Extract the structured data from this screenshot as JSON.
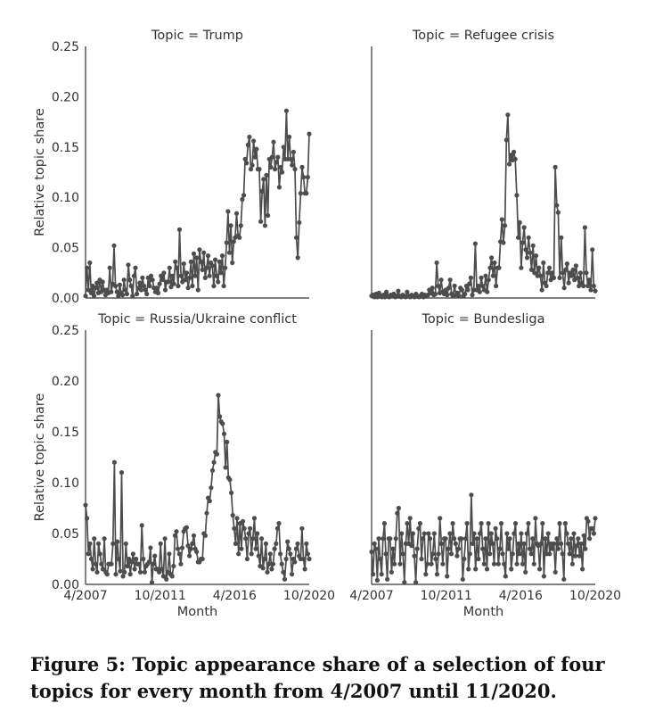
{
  "caption": "Figure 5: Topic appearance share of a selection of four topics for every month from 4/2007 until 11/2020.",
  "y_axis_label": "Relative topic share",
  "x_axis_label": "Month",
  "chart_data": [
    {
      "type": "line",
      "title": "Topic = Trump",
      "ylabel": "Relative topic share",
      "xlabel": "",
      "ylim": [
        0,
        0.25
      ],
      "yticks": [
        "0.00",
        "0.05",
        "0.10",
        "0.15",
        "0.20",
        "0.25"
      ],
      "xticks": [],
      "x_start": "4/2007",
      "x_end": "11/2020",
      "series": [
        {
          "color": "#4d4d4d",
          "values": [
            0.002,
            0.03,
            0.008,
            0.035,
            0.005,
            0.012,
            0.002,
            0.01,
            0.015,
            0.005,
            0.018,
            0.006,
            0.016,
            0.008,
            0.003,
            0.008,
            0.005,
            0.03,
            0.006,
            0.014,
            0.052,
            0.012,
            0.006,
            0.002,
            0.013,
            0.005,
            0.003,
            0.018,
            0.008,
            0.004,
            0.033,
            0.018,
            0.012,
            0.002,
            0.022,
            0.03,
            0.004,
            0.01,
            0.015,
            0.008,
            0.02,
            0.012,
            0.008,
            0.004,
            0.02,
            0.012,
            0.022,
            0.018,
            0.01,
            0.006,
            0.01,
            0.005,
            0.014,
            0.022,
            0.018,
            0.025,
            0.008,
            0.016,
            0.016,
            0.03,
            0.011,
            0.022,
            0.014,
            0.036,
            0.03,
            0.012,
            0.068,
            0.022,
            0.016,
            0.034,
            0.018,
            0.025,
            0.01,
            0.02,
            0.036,
            0.012,
            0.044,
            0.022,
            0.04,
            0.008,
            0.048,
            0.036,
            0.028,
            0.045,
            0.02,
            0.03,
            0.042,
            0.022,
            0.035,
            0.032,
            0.012,
            0.038,
            0.022,
            0.016,
            0.036,
            0.025,
            0.042,
            0.012,
            0.03,
            0.055,
            0.086,
            0.045,
            0.072,
            0.035,
            0.056,
            0.06,
            0.084,
            0.062,
            0.06,
            0.072,
            0.098,
            0.102,
            0.138,
            0.134,
            0.152,
            0.16,
            0.128,
            0.132,
            0.156,
            0.14,
            0.148,
            0.128,
            0.128,
            0.076,
            0.106,
            0.118,
            0.072,
            0.122,
            0.082,
            0.138,
            0.13,
            0.14,
            0.155,
            0.128,
            0.135,
            0.14,
            0.11,
            0.13,
            0.125,
            0.15,
            0.138,
            0.186,
            0.138,
            0.16,
            0.138,
            0.132,
            0.145,
            0.128,
            0.06,
            0.04,
            0.075,
            0.104,
            0.13,
            0.12,
            0.104,
            0.104,
            0.12,
            0.163
          ]
        }
      ]
    },
    {
      "type": "line",
      "title": "Topic = Refugee crisis",
      "ylabel": "",
      "xlabel": "",
      "ylim": [
        0,
        0.25
      ],
      "yticks": [],
      "xticks": [],
      "x_start": "4/2007",
      "x_end": "11/2020",
      "series": [
        {
          "color": "#4d4d4d",
          "values": [
            0.002,
            0.003,
            0.001,
            0.004,
            0.001,
            0.005,
            0.002,
            0.001,
            0.003,
            0.001,
            0.006,
            0.002,
            0.001,
            0.003,
            0.002,
            0.004,
            0.001,
            0.002,
            0.007,
            0.002,
            0.001,
            0.003,
            0.002,
            0.001,
            0.006,
            0.002,
            0.001,
            0.003,
            0.002,
            0.001,
            0.004,
            0.002,
            0.001,
            0.002,
            0.004,
            0.001,
            0.003,
            0.002,
            0.003,
            0.008,
            0.005,
            0.01,
            0.003,
            0.004,
            0.035,
            0.012,
            0.005,
            0.018,
            0.006,
            0.004,
            0.008,
            0.003,
            0.01,
            0.018,
            0.004,
            0.002,
            0.012,
            0.003,
            0.005,
            0.002,
            0.01,
            0.008,
            0.002,
            0.004,
            0.012,
            0.008,
            0.014,
            0.02,
            0.003,
            0.008,
            0.054,
            0.008,
            0.012,
            0.006,
            0.02,
            0.012,
            0.008,
            0.022,
            0.006,
            0.018,
            0.03,
            0.04,
            0.022,
            0.035,
            0.012,
            0.03,
            0.03,
            0.056,
            0.078,
            0.055,
            0.072,
            0.157,
            0.182,
            0.133,
            0.142,
            0.137,
            0.145,
            0.138,
            0.102,
            0.06,
            0.075,
            0.03,
            0.055,
            0.07,
            0.048,
            0.04,
            0.06,
            0.045,
            0.028,
            0.052,
            0.025,
            0.042,
            0.022,
            0.03,
            0.022,
            0.008,
            0.035,
            0.015,
            0.012,
            0.025,
            0.03,
            0.018,
            0.025,
            0.02,
            0.13,
            0.092,
            0.085,
            0.02,
            0.06,
            0.025,
            0.01,
            0.028,
            0.034,
            0.015,
            0.025,
            0.022,
            0.028,
            0.018,
            0.032,
            0.02,
            0.012,
            0.025,
            0.015,
            0.012,
            0.07,
            0.025,
            0.012,
            0.018,
            0.008,
            0.048,
            0.012,
            0.007
          ]
        }
      ]
    },
    {
      "type": "line",
      "title": "Topic = Russia/Ukraine conflict",
      "ylabel": "Relative topic share",
      "xlabel": "",
      "ylim": [
        0,
        0.25
      ],
      "yticks": [
        "0.00",
        "0.05",
        "0.10",
        "0.15",
        "0.20",
        "0.25"
      ],
      "xticks": [
        "4/2007",
        "10/2011",
        "4/2016",
        "10/2020"
      ],
      "x_start": "4/2007",
      "x_end": "11/2020",
      "series": [
        {
          "color": "#4d4d4d",
          "values": [
            0.078,
            0.065,
            0.03,
            0.04,
            0.025,
            0.015,
            0.045,
            0.02,
            0.012,
            0.04,
            0.03,
            0.02,
            0.015,
            0.045,
            0.012,
            0.01,
            0.02,
            0.02,
            0.02,
            0.04,
            0.12,
            0.01,
            0.042,
            0.025,
            0.013,
            0.11,
            0.008,
            0.012,
            0.04,
            0.018,
            0.025,
            0.01,
            0.022,
            0.03,
            0.015,
            0.025,
            0.02,
            0.02,
            0.012,
            0.058,
            0.025,
            0.012,
            0.018,
            0.02,
            0.022,
            0.036,
            0.002,
            0.02,
            0.028,
            0.015,
            0.015,
            0.012,
            0.04,
            0.015,
            0.008,
            0.045,
            0.005,
            0.012,
            0.03,
            0.01,
            0.008,
            0.018,
            0.048,
            0.052,
            0.035,
            0.03,
            0.02,
            0.036,
            0.052,
            0.055,
            0.056,
            0.038,
            0.028,
            0.035,
            0.04,
            0.048,
            0.035,
            0.032,
            0.022,
            0.022,
            0.025,
            0.025,
            0.05,
            0.048,
            0.07,
            0.085,
            0.082,
            0.095,
            0.112,
            0.12,
            0.13,
            0.128,
            0.186,
            0.165,
            0.16,
            0.158,
            0.148,
            0.115,
            0.14,
            0.105,
            0.103,
            0.09,
            0.068,
            0.055,
            0.04,
            0.065,
            0.03,
            0.06,
            0.035,
            0.062,
            0.055,
            0.045,
            0.025,
            0.05,
            0.055,
            0.03,
            0.045,
            0.065,
            0.035,
            0.05,
            0.028,
            0.018,
            0.045,
            0.016,
            0.025,
            0.04,
            0.012,
            0.02,
            0.03,
            0.015,
            0.02,
            0.035,
            0.04,
            0.055,
            0.06,
            0.03,
            0.02,
            0.012,
            0.005,
            0.025,
            0.042,
            0.035,
            0.03,
            0.01,
            0.025,
            0.022,
            0.035,
            0.04,
            0.028,
            0.025,
            0.055,
            0.025,
            0.015,
            0.04,
            0.03,
            0.025
          ]
        }
      ]
    },
    {
      "type": "line",
      "title": "Topic = Bundesliga",
      "ylabel": "",
      "xlabel": "",
      "ylim": [
        0,
        0.25
      ],
      "yticks": [],
      "xticks": [
        "4/2007",
        "10/2011",
        "4/2016",
        "10/2020"
      ],
      "x_start": "4/2007",
      "x_end": "11/2020",
      "series": [
        {
          "color": "#4d4d4d",
          "values": [
            0.032,
            0.01,
            0.04,
            0.035,
            0.004,
            0.045,
            0.025,
            0.01,
            0.045,
            0.06,
            0.03,
            0.005,
            0.045,
            0.045,
            0.012,
            0.035,
            0.02,
            0.045,
            0.07,
            0.075,
            0.02,
            0.05,
            0.03,
            0.002,
            0.04,
            0.06,
            0.04,
            0.065,
            0.038,
            0.05,
            0.028,
            0.002,
            0.035,
            0.055,
            0.06,
            0.025,
            0.045,
            0.05,
            0.01,
            0.02,
            0.05,
            0.045,
            0.02,
            0.03,
            0.05,
            0.025,
            0.01,
            0.03,
            0.065,
            0.04,
            0.02,
            0.045,
            0.045,
            0.008,
            0.035,
            0.05,
            0.03,
            0.06,
            0.045,
            0.04,
            0.028,
            0.035,
            0.045,
            0.045,
            0.005,
            0.025,
            0.045,
            0.06,
            0.015,
            0.03,
            0.088,
            0.04,
            0.05,
            0.015,
            0.045,
            0.025,
            0.05,
            0.06,
            0.035,
            0.02,
            0.045,
            0.015,
            0.06,
            0.03,
            0.05,
            0.04,
            0.02,
            0.055,
            0.045,
            0.02,
            0.035,
            0.06,
            0.03,
            0.02,
            0.008,
            0.05,
            0.035,
            0.045,
            0.015,
            0.03,
            0.05,
            0.06,
            0.02,
            0.04,
            0.03,
            0.05,
            0.02,
            0.04,
            0.012,
            0.05,
            0.06,
            0.035,
            0.03,
            0.045,
            0.02,
            0.065,
            0.04,
            0.038,
            0.015,
            0.04,
            0.06,
            0.008,
            0.045,
            0.03,
            0.05,
            0.03,
            0.04,
            0.035,
            0.04,
            0.012,
            0.045,
            0.035,
            0.06,
            0.04,
            0.03,
            0.005,
            0.06,
            0.05,
            0.04,
            0.03,
            0.045,
            0.02,
            0.05,
            0.028,
            0.038,
            0.045,
            0.028,
            0.04,
            0.015,
            0.048,
            0.035,
            0.065,
            0.062,
            0.045,
            0.055,
            0.055,
            0.05,
            0.065
          ]
        }
      ]
    }
  ]
}
